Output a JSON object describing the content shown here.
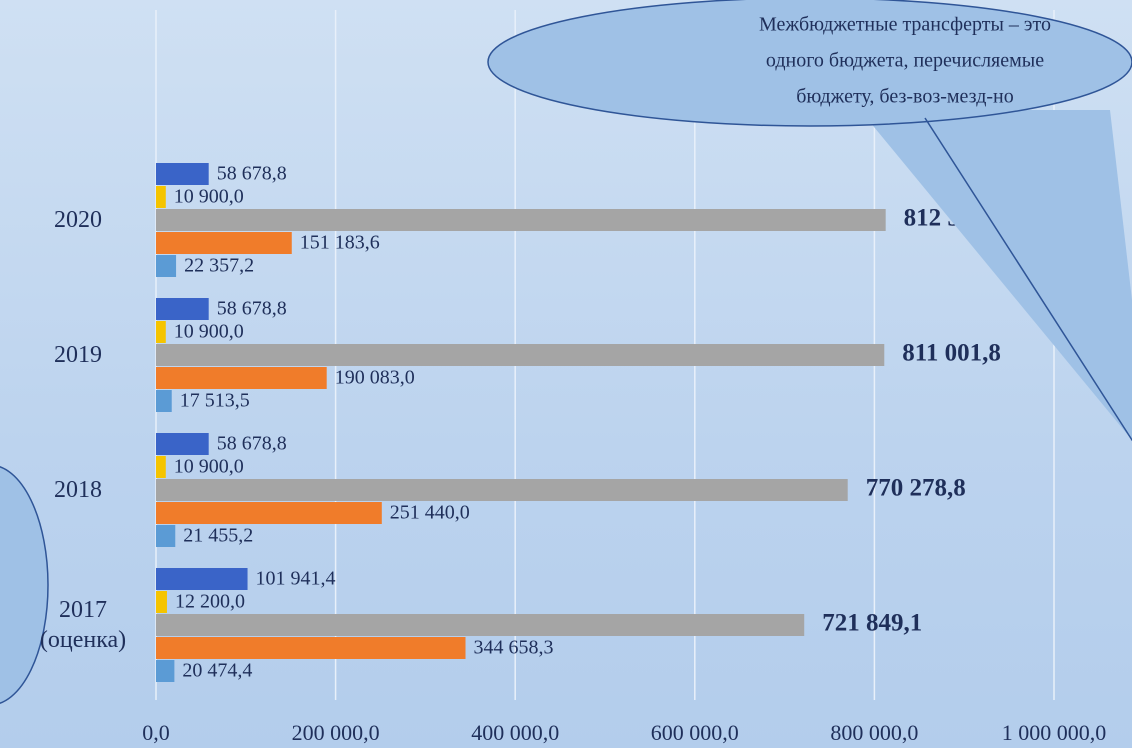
{
  "chart_data": {
    "type": "barh",
    "categories": [
      "2017 (оценка)",
      "2018",
      "2019",
      "2020"
    ],
    "series": [
      {
        "color": "#3a64c8",
        "values": [
          101941.4,
          58678.8,
          58678.8,
          58678.8
        ],
        "value_labels": [
          "101 941,4",
          "58 678,8",
          "58 678,8",
          "58 678,8"
        ]
      },
      {
        "color": "#f5c400",
        "values": [
          12200.0,
          10900.0,
          10900.0,
          10900.0
        ],
        "value_labels": [
          "12 200,0",
          "10 900,0",
          "10 900,0",
          "10 900,0"
        ]
      },
      {
        "color": "#a5a5a5",
        "values": [
          721849.1,
          770278.8,
          811001.8,
          812561.6
        ],
        "value_labels": [
          "721 849,1",
          "770 278,8",
          "811 001,8",
          "812 561,6"
        ],
        "bold_labels": true
      },
      {
        "color": "#f07c2a",
        "values": [
          344658.3,
          251440.0,
          190083.0,
          151183.6
        ],
        "value_labels": [
          "344 658,3",
          "251 440,0",
          "190 083,0",
          "151 183,6"
        ]
      },
      {
        "color": "#5b9bd5",
        "values": [
          20474.4,
          21455.2,
          17513.5,
          22357.2
        ],
        "value_labels": [
          "20 474,4",
          "21 455,2",
          "17 513,5",
          "22 357,2"
        ]
      }
    ],
    "xlim": [
      0,
      1000000
    ],
    "xticks": [
      {
        "value": 0,
        "label": "0,0"
      },
      {
        "value": 200000,
        "label": "200 000,0"
      },
      {
        "value": 400000,
        "label": "400 000,0"
      },
      {
        "value": 600000,
        "label": "600 000,0"
      },
      {
        "value": 800000,
        "label": "800 000,0"
      },
      {
        "value": 1000000,
        "label": "1 000 000,0"
      }
    ],
    "grid": true,
    "annotation": [
      "Межбюджетные трансферты – это",
      "одного бюджета, перечисляемые",
      "бюджету, без-воз-мезд-но"
    ]
  }
}
